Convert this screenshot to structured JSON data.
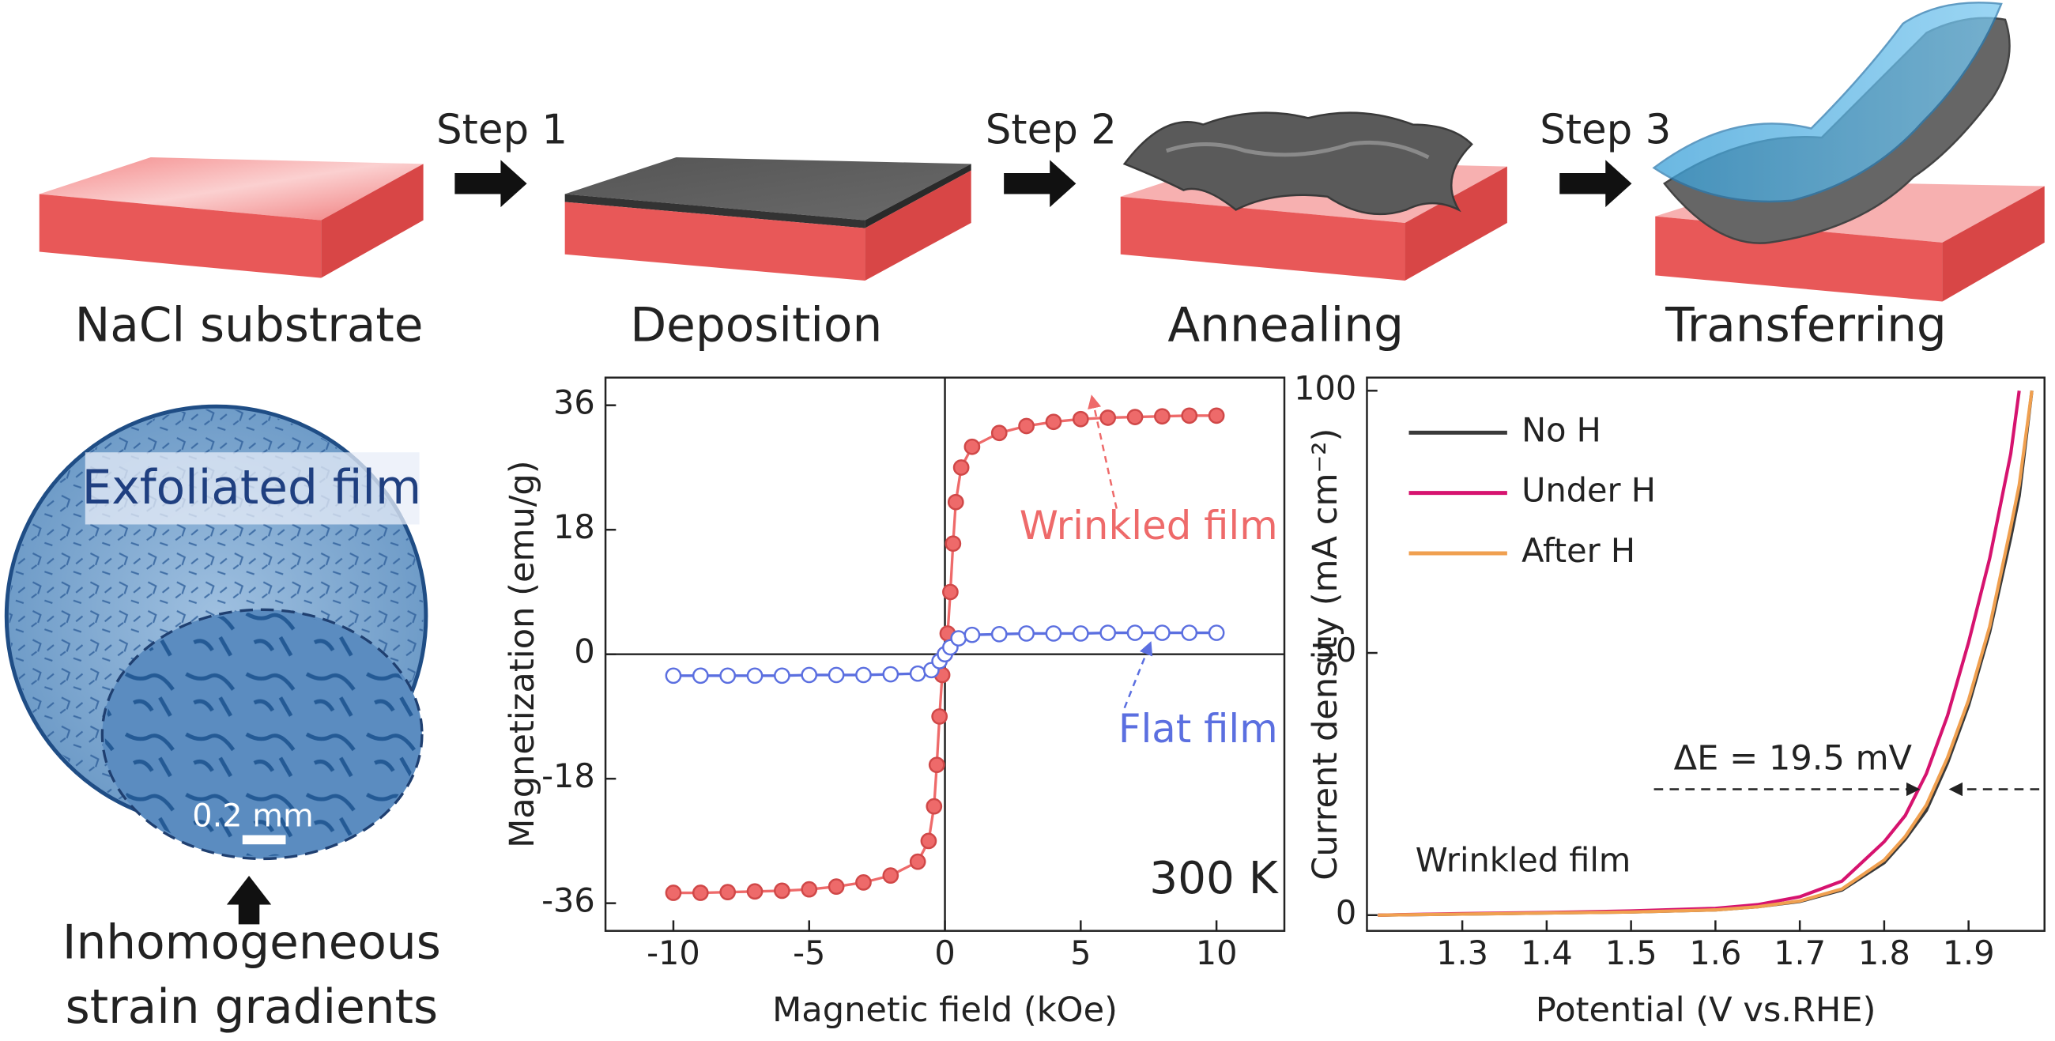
{
  "process": {
    "stages": [
      "NaCl substrate",
      "Deposition",
      "Annealing",
      "Transferring"
    ],
    "steps": [
      "Step 1",
      "Step 2",
      "Step 3"
    ]
  },
  "micrograph": {
    "label": "Exfoliated film",
    "scale_bar": "0.2 mm",
    "caption": [
      "Inhomogeneous",
      "strain gradients"
    ]
  },
  "chart_data": [
    {
      "type": "line",
      "xlabel": "Magnetic field (kOe)",
      "ylabel": "Magnetization (emu/g)",
      "xlim": [
        -12.5,
        12.5
      ],
      "ylim": [
        -40,
        40
      ],
      "xticks": [
        -10,
        -5,
        0,
        5,
        10
      ],
      "yticks": [
        -36,
        -18,
        0,
        18,
        36
      ],
      "annotations": [
        "Wrinkled film",
        "Flat film",
        "300 K"
      ],
      "series": [
        {
          "name": "Wrinkled film",
          "color": "#ee6a6a",
          "marker": "filled",
          "x": [
            -10,
            -9,
            -8,
            -7,
            -6,
            -5,
            -4,
            -3,
            -2,
            -1,
            -0.6,
            -0.4,
            -0.3,
            -0.2,
            -0.1,
            0,
            0.1,
            0.2,
            0.3,
            0.4,
            0.6,
            1,
            2,
            3,
            4,
            5,
            6,
            7,
            8,
            9,
            10
          ],
          "values": [
            -34.5,
            -34.5,
            -34.4,
            -34.3,
            -34.2,
            -34,
            -33.6,
            -33,
            -32,
            -30,
            -27,
            -22,
            -16,
            -9,
            -3,
            0,
            3,
            9,
            16,
            22,
            27,
            30,
            32,
            33,
            33.6,
            34,
            34.2,
            34.3,
            34.4,
            34.5,
            34.5
          ]
        },
        {
          "name": "Flat film",
          "color": "#5b6fe0",
          "marker": "open",
          "x": [
            -10,
            -9,
            -8,
            -7,
            -6,
            -5,
            -4,
            -3,
            -2,
            -1,
            -0.5,
            -0.2,
            0,
            0.2,
            0.5,
            1,
            2,
            3,
            4,
            5,
            6,
            7,
            8,
            9,
            10
          ],
          "values": [
            -3.1,
            -3.1,
            -3.1,
            -3.1,
            -3.1,
            -3,
            -3,
            -3,
            -2.9,
            -2.8,
            -2.3,
            -1,
            0,
            1,
            2.3,
            2.8,
            2.9,
            3,
            3,
            3,
            3.1,
            3.1,
            3.1,
            3.1,
            3.1
          ]
        }
      ]
    },
    {
      "type": "line",
      "xlabel": "Potential (V vs.RHE)",
      "ylabel": "Current density (mA cm⁻²)",
      "xlim": [
        1.187,
        1.99
      ],
      "ylim": [
        -3,
        102.5
      ],
      "xticks": [
        1.3,
        1.4,
        1.5,
        1.6,
        1.7,
        1.8,
        1.9
      ],
      "yticks": [
        0,
        50,
        100
      ],
      "annotations": [
        "ΔE = 19.5 mV",
        "Wrinkled film"
      ],
      "x": [
        1.2,
        1.3,
        1.4,
        1.5,
        1.6,
        1.65,
        1.7,
        1.75,
        1.8,
        1.825,
        1.85,
        1.875,
        1.9,
        1.925,
        1.95,
        1.96,
        1.975
      ],
      "series": [
        {
          "name": "No H",
          "color": "#3a3a3a",
          "values": [
            0,
            0.2,
            0.4,
            0.6,
            1,
            1.6,
            2.6,
            4.8,
            10,
            14.5,
            20,
            29,
            40,
            54,
            72,
            80,
            100
          ]
        },
        {
          "name": "Under H",
          "color": "#d6136f",
          "values": [
            0,
            0.3,
            0.5,
            0.8,
            1.3,
            2,
            3.5,
            6.5,
            14,
            19,
            27,
            38,
            52,
            68,
            88,
            100,
            null
          ]
        },
        {
          "name": "After H",
          "color": "#f0a050",
          "values": [
            0,
            0.2,
            0.4,
            0.6,
            1,
            1.6,
            2.7,
            5,
            10.5,
            15,
            21,
            30,
            41,
            55,
            74,
            82,
            100
          ]
        }
      ]
    }
  ]
}
